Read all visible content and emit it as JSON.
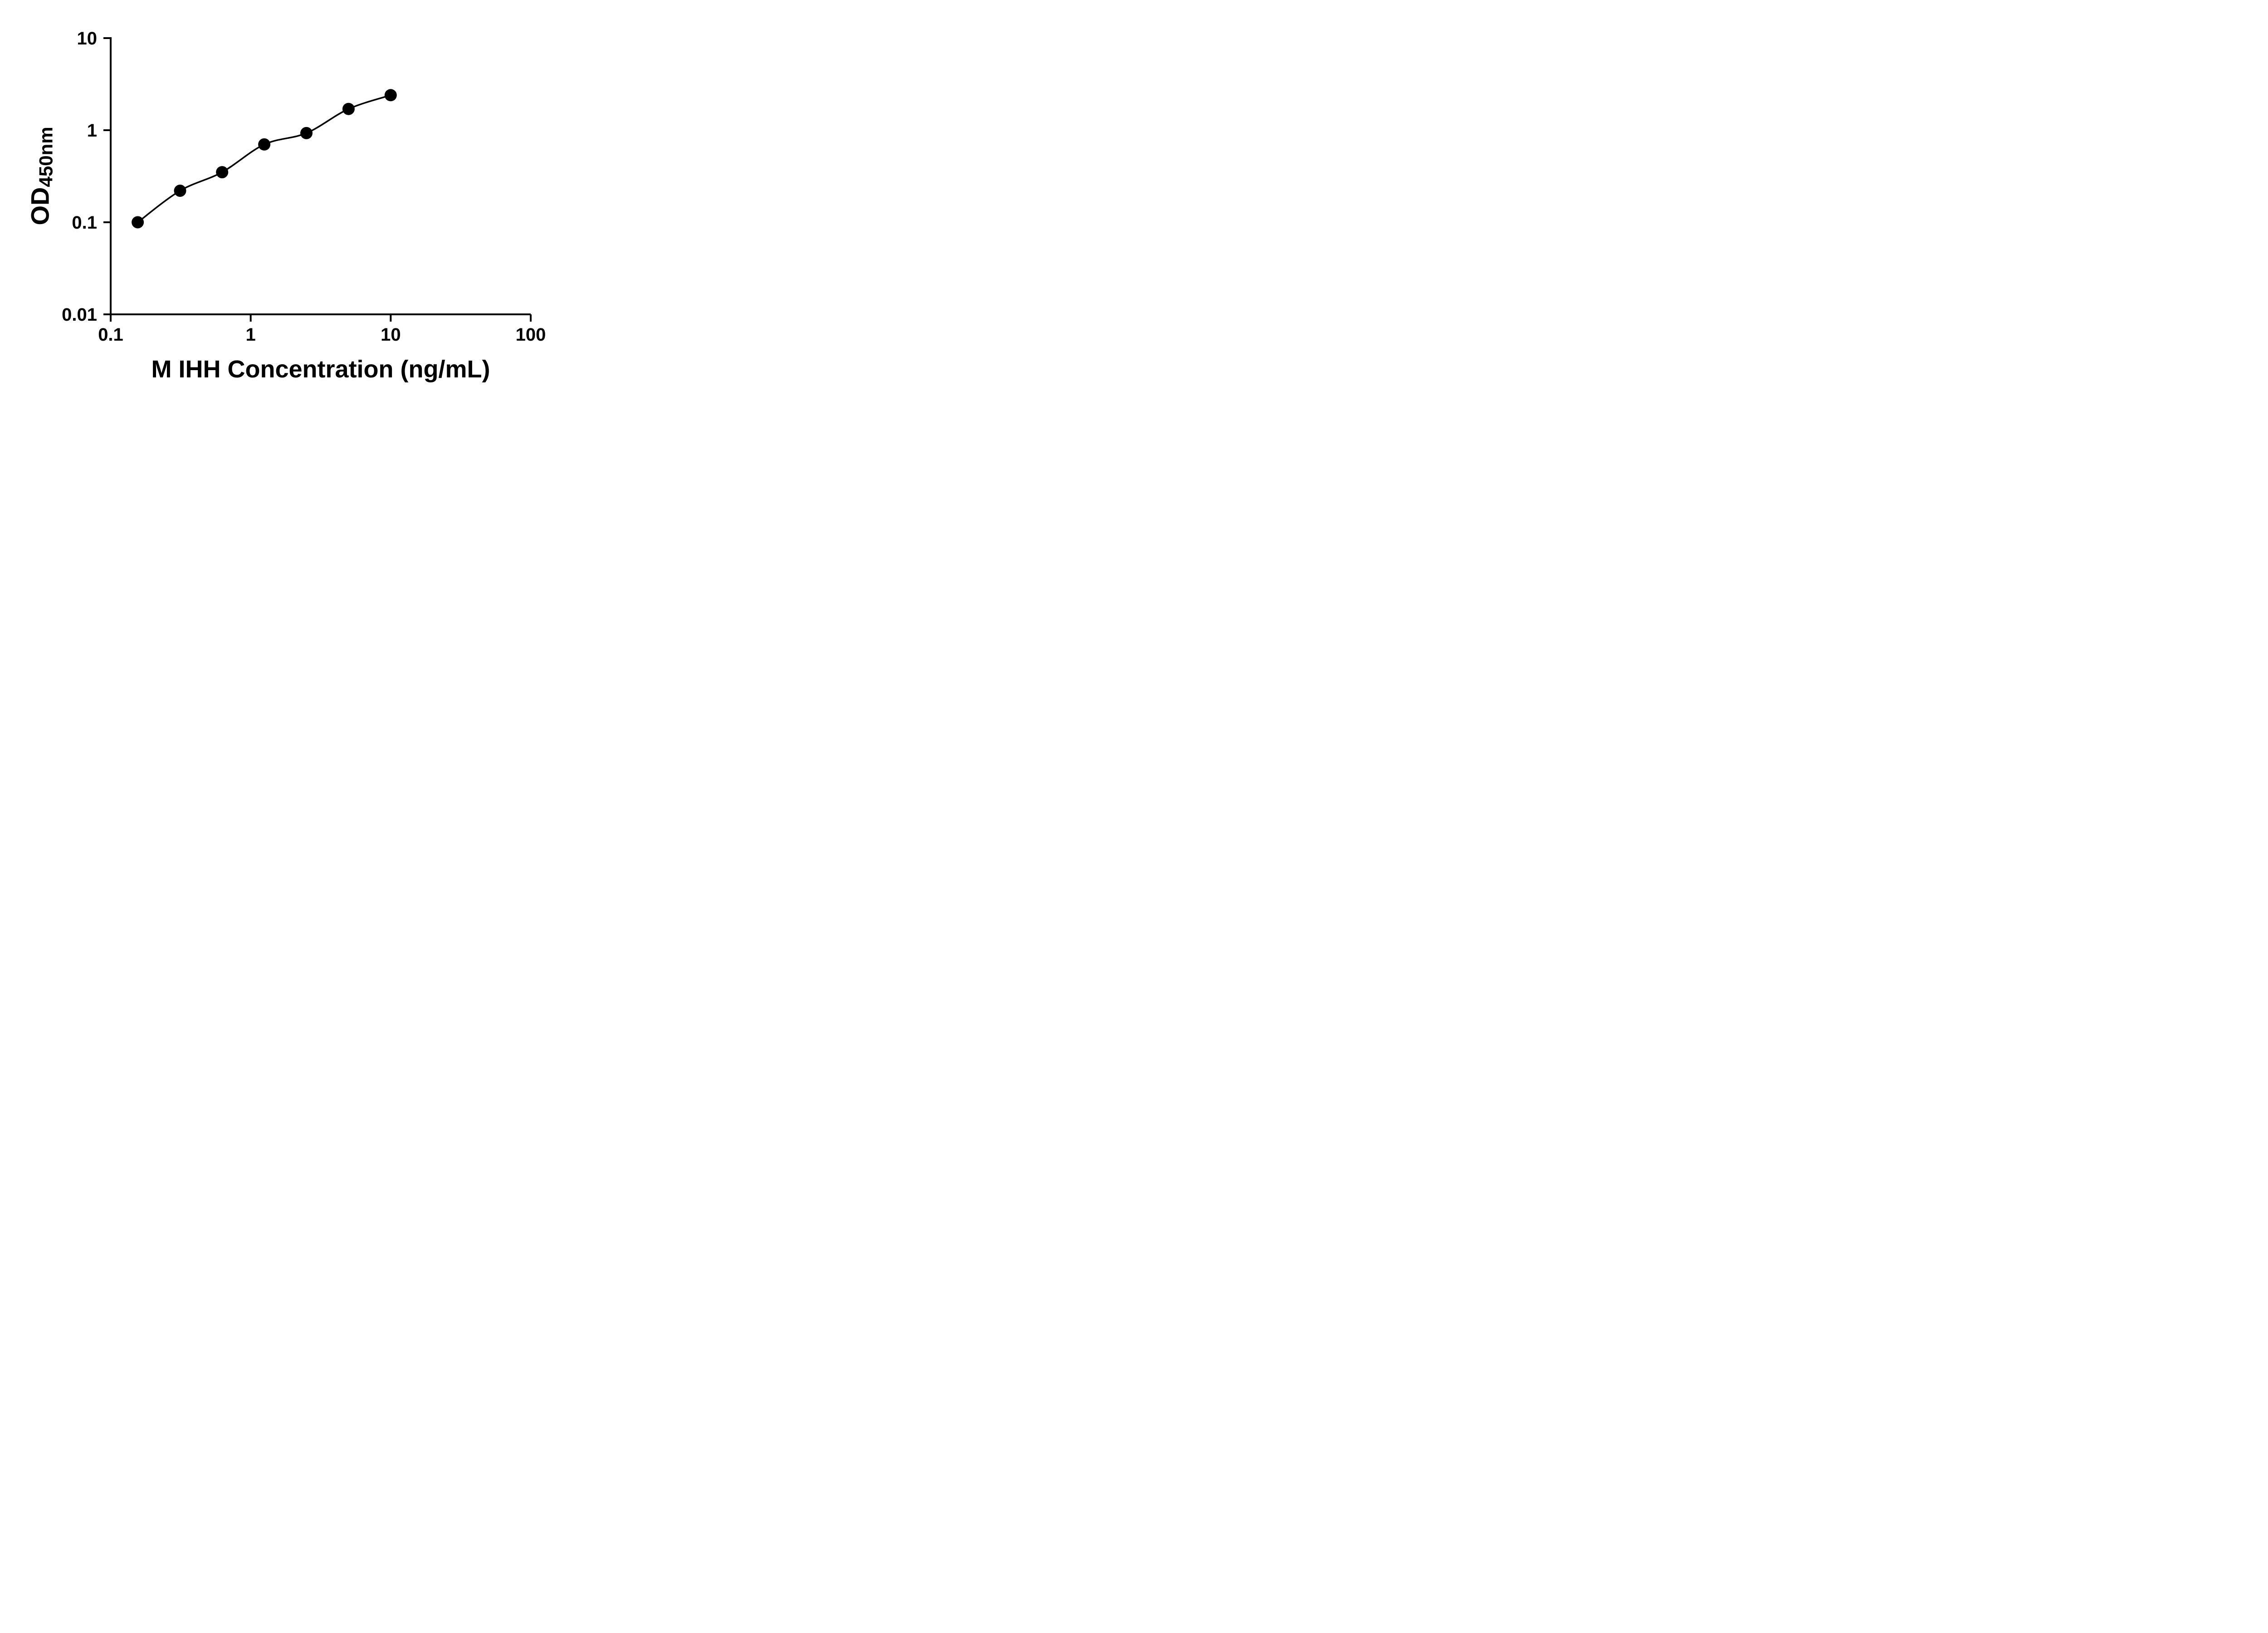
{
  "figure": {
    "background": "#ffffff"
  },
  "chart_data": {
    "type": "scatter",
    "subtype": "elisa-standard-curve",
    "title": "",
    "xlabel": "M IHH Concentration (ng/mL)",
    "ylabel": "OD450nm",
    "ylabel_main": "OD",
    "ylabel_sub": "450nm",
    "x_scale": "log10",
    "y_scale": "log10",
    "xlim": [
      0.1,
      100
    ],
    "ylim": [
      0.01,
      10
    ],
    "grid": false,
    "legend": null,
    "x_ticks": [
      {
        "value": 0.1,
        "label": "0.1"
      },
      {
        "value": 1,
        "label": "1"
      },
      {
        "value": 10,
        "label": "10"
      },
      {
        "value": 100,
        "label": "100"
      }
    ],
    "y_ticks": [
      {
        "value": 0.01,
        "label": "0.01"
      },
      {
        "value": 0.1,
        "label": "0.1"
      },
      {
        "value": 1,
        "label": "1"
      },
      {
        "value": 10,
        "label": "10"
      }
    ],
    "points": [
      {
        "x": 0.156,
        "y": 0.1
      },
      {
        "x": 0.313,
        "y": 0.22
      },
      {
        "x": 0.625,
        "y": 0.35
      },
      {
        "x": 1.25,
        "y": 0.7
      },
      {
        "x": 2.5,
        "y": 0.93
      },
      {
        "x": 5,
        "y": 1.7
      },
      {
        "x": 10,
        "y": 2.4
      }
    ],
    "style": {
      "axis_color": "#000000",
      "marker_color": "#000000",
      "line_color": "#000000",
      "text_color": "#000000",
      "marker_shape": "circle"
    }
  }
}
